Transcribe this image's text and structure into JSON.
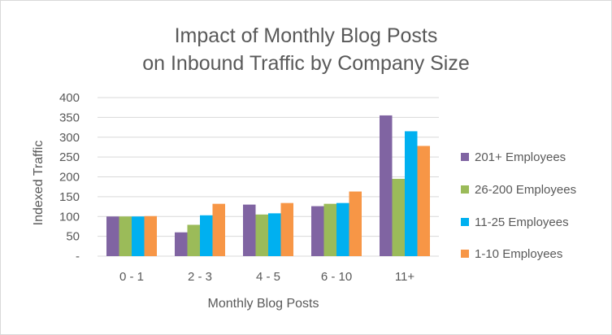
{
  "chart_data": {
    "type": "bar",
    "title_lines": [
      "Impact of Monthly Blog Posts",
      "on Inbound Traffic by Company Size"
    ],
    "xlabel": "Monthly Blog Posts",
    "ylabel": "Indexed Traffic",
    "categories": [
      "0 - 1",
      "2 - 3",
      "4 - 5",
      "6 - 10",
      "11+"
    ],
    "series": [
      {
        "name": "201+ Employees",
        "color": "#8064a2",
        "values": [
          100,
          60,
          130,
          126,
          355
        ]
      },
      {
        "name": "26-200 Employees",
        "color": "#9bbb59",
        "values": [
          100,
          79,
          105,
          132,
          195
        ]
      },
      {
        "name": "11-25 Employees",
        "color": "#00b0f0",
        "values": [
          100,
          103,
          108,
          134,
          315
        ]
      },
      {
        "name": "1-10 Employees",
        "color": "#f79646",
        "values": [
          101,
          132,
          134,
          163,
          278
        ]
      }
    ],
    "y_ticks": [
      "-",
      "50",
      "100",
      "150",
      "200",
      "250",
      "300",
      "350",
      "400"
    ],
    "y_tick_values": [
      0,
      50,
      100,
      150,
      200,
      250,
      300,
      350,
      400
    ],
    "ylim": [
      0,
      400
    ],
    "grid": true,
    "legend_position": "right"
  }
}
